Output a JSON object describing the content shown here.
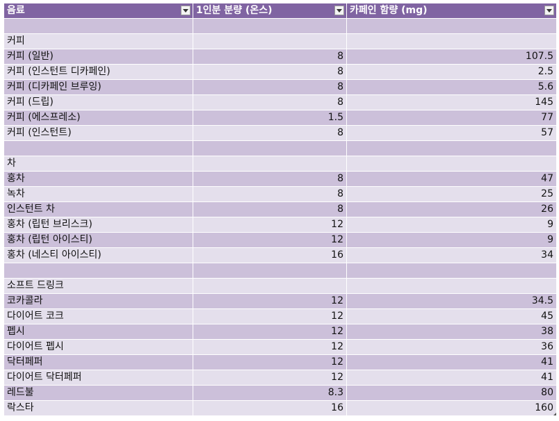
{
  "headers": {
    "beverage": "음료",
    "serving": "1인분 분량 (온스)",
    "caffeine": "카페인 함량 (mg)"
  },
  "colors": {
    "header_bg": "#8064a2",
    "band_dark": "#ccc0da",
    "band_light": "#e4dfec"
  },
  "rows": [
    {
      "name": "",
      "serving": "",
      "caffeine": ""
    },
    {
      "name": "커피",
      "serving": "",
      "caffeine": ""
    },
    {
      "name": "커피 (일반)",
      "serving": "8",
      "caffeine": "107.5"
    },
    {
      "name": "커피 (인스턴트 디카페인)",
      "serving": "8",
      "caffeine": "2.5"
    },
    {
      "name": "커피 (디카페인 브루잉)",
      "serving": "8",
      "caffeine": "5.6"
    },
    {
      "name": "커피 (드립)",
      "serving": "8",
      "caffeine": "145"
    },
    {
      "name": "커피 (에스프레소)",
      "serving": "1.5",
      "caffeine": "77"
    },
    {
      "name": "커피 (인스턴트)",
      "serving": "8",
      "caffeine": "57"
    },
    {
      "name": "",
      "serving": "",
      "caffeine": ""
    },
    {
      "name": "차",
      "serving": "",
      "caffeine": ""
    },
    {
      "name": "홍차",
      "serving": "8",
      "caffeine": "47"
    },
    {
      "name": "녹차",
      "serving": "8",
      "caffeine": "25"
    },
    {
      "name": "인스턴트 차",
      "serving": "8",
      "caffeine": "26"
    },
    {
      "name": "홍차 (립턴 브리스크)",
      "serving": "12",
      "caffeine": "9"
    },
    {
      "name": "홍차 (립턴 아이스티)",
      "serving": "12",
      "caffeine": "9"
    },
    {
      "name": "홍차 (네스티 아이스티)",
      "serving": "16",
      "caffeine": "34"
    },
    {
      "name": "",
      "serving": "",
      "caffeine": ""
    },
    {
      "name": "소프트 드링크",
      "serving": "",
      "caffeine": ""
    },
    {
      "name": "코카콜라",
      "serving": "12",
      "caffeine": "34.5"
    },
    {
      "name": "다이어트 코크",
      "serving": "12",
      "caffeine": "45"
    },
    {
      "name": "펩시",
      "serving": "12",
      "caffeine": "38"
    },
    {
      "name": "다이어트 펩시",
      "serving": "12",
      "caffeine": "36"
    },
    {
      "name": "닥터페퍼",
      "serving": "12",
      "caffeine": "41"
    },
    {
      "name": "다이어트 닥터페퍼",
      "serving": "12",
      "caffeine": "41"
    },
    {
      "name": "레드불",
      "serving": "8.3",
      "caffeine": "80"
    },
    {
      "name": "락스타",
      "serving": "16",
      "caffeine": "160"
    }
  ]
}
